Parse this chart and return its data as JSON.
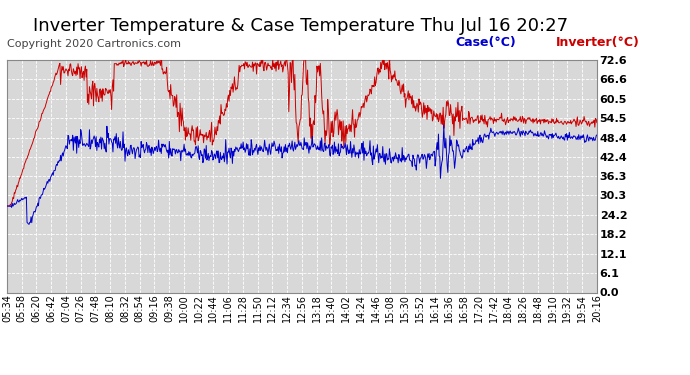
{
  "title": "Inverter Temperature & Case Temperature Thu Jul 16 20:27",
  "copyright": "Copyright 2020 Cartronics.com",
  "legend_case": "Case(°C)",
  "legend_inverter": "Inverter(°C)",
  "ylabel_right_ticks": [
    0.0,
    6.1,
    12.1,
    18.2,
    24.2,
    30.3,
    36.3,
    42.4,
    48.4,
    54.5,
    60.5,
    66.6,
    72.6
  ],
  "ylim": [
    0.0,
    72.6
  ],
  "background_color": "#ffffff",
  "plot_bg_color": "#d8d8d8",
  "grid_color": "#ffffff",
  "case_color": "#0000cc",
  "inverter_color": "#cc0000",
  "title_fontsize": 13,
  "copyright_fontsize": 8,
  "legend_fontsize": 9,
  "tick_fontsize": 8,
  "x_tick_fontsize": 7,
  "x_tick_labels": [
    "05:34",
    "05:58",
    "06:20",
    "06:42",
    "07:04",
    "07:26",
    "07:48",
    "08:10",
    "08:32",
    "08:54",
    "09:16",
    "09:38",
    "10:00",
    "10:22",
    "10:44",
    "11:06",
    "11:28",
    "11:50",
    "12:12",
    "12:34",
    "12:56",
    "13:18",
    "13:40",
    "14:02",
    "14:24",
    "14:46",
    "15:08",
    "15:30",
    "15:52",
    "16:14",
    "16:36",
    "16:58",
    "17:20",
    "17:42",
    "18:04",
    "18:26",
    "18:48",
    "19:10",
    "19:32",
    "19:54",
    "20:16"
  ]
}
